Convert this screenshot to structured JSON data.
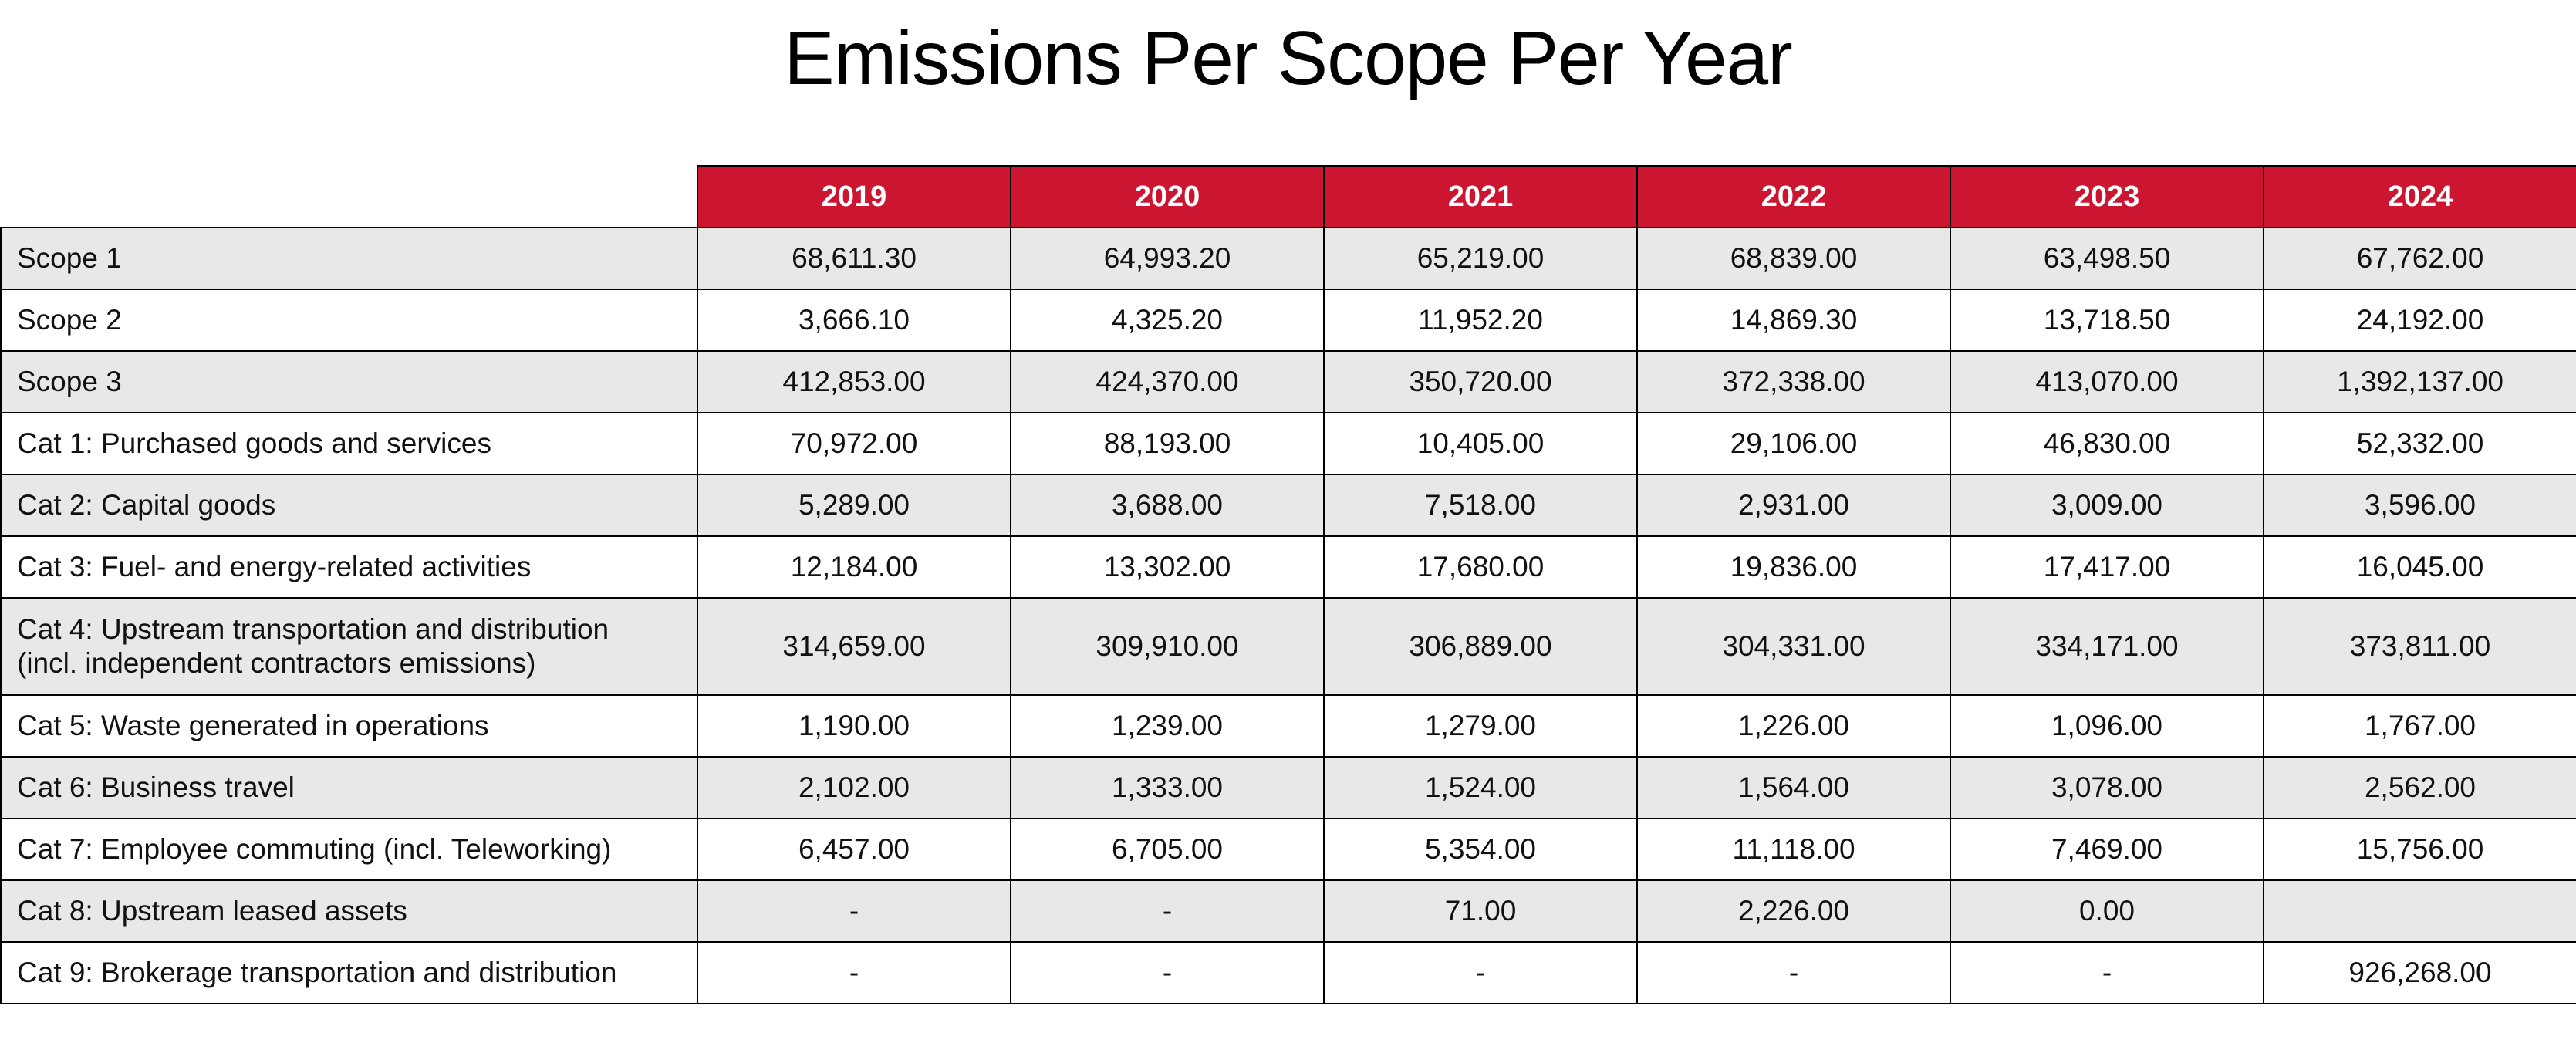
{
  "title": "Emissions Per Scope Per Year",
  "colors": {
    "header_bg": "#cc1530",
    "header_text": "#ffffff",
    "shaded_row": "#e8e8e8"
  },
  "table": {
    "years": [
      "2019",
      "2020",
      "2021",
      "2022",
      "2023",
      "2024"
    ],
    "rows": [
      {
        "label": "Scope 1",
        "values": [
          "68,611.30",
          "64,993.20",
          "65,219.00",
          "68,839.00",
          "63,498.50",
          "67,762.00"
        ]
      },
      {
        "label": "Scope 2",
        "values": [
          "3,666.10",
          "4,325.20",
          "11,952.20",
          "14,869.30",
          "13,718.50",
          "24,192.00"
        ]
      },
      {
        "label": "Scope 3",
        "values": [
          "412,853.00",
          "424,370.00",
          "350,720.00",
          "372,338.00",
          "413,070.00",
          "1,392,137.00"
        ]
      },
      {
        "label": "Cat 1: Purchased goods and services",
        "values": [
          "70,972.00",
          "88,193.00",
          "10,405.00",
          "29,106.00",
          "46,830.00",
          "52,332.00"
        ]
      },
      {
        "label": "Cat 2: Capital goods",
        "values": [
          "5,289.00",
          "3,688.00",
          "7,518.00",
          "2,931.00",
          "3,009.00",
          "3,596.00"
        ]
      },
      {
        "label": "Cat 3: Fuel- and energy-related activities",
        "values": [
          "12,184.00",
          "13,302.00",
          "17,680.00",
          "19,836.00",
          "17,417.00",
          "16,045.00"
        ]
      },
      {
        "label": "Cat 4: Upstream transportation and distribution",
        "label_line2": "(incl. independent contractors emissions)",
        "values": [
          "314,659.00",
          "309,910.00",
          "306,889.00",
          "304,331.00",
          "334,171.00",
          "373,811.00"
        ]
      },
      {
        "label": "Cat 5: Waste generated in operations",
        "values": [
          "1,190.00",
          "1,239.00",
          "1,279.00",
          "1,226.00",
          "1,096.00",
          "1,767.00"
        ]
      },
      {
        "label": "Cat 6: Business travel",
        "values": [
          "2,102.00",
          "1,333.00",
          "1,524.00",
          "1,564.00",
          "3,078.00",
          "2,562.00"
        ]
      },
      {
        "label": "Cat 7: Employee commuting (incl. Teleworking)",
        "values": [
          "6,457.00",
          "6,705.00",
          "5,354.00",
          "11,118.00",
          "7,469.00",
          "15,756.00"
        ]
      },
      {
        "label": "Cat 8: Upstream leased assets",
        "values": [
          "-",
          "-",
          "71.00",
          "2,226.00",
          "0.00",
          ""
        ]
      },
      {
        "label": "Cat 9: Brokerage transportation and distribution",
        "values": [
          "-",
          "-",
          "-",
          "-",
          "-",
          "926,268.00"
        ]
      }
    ]
  }
}
